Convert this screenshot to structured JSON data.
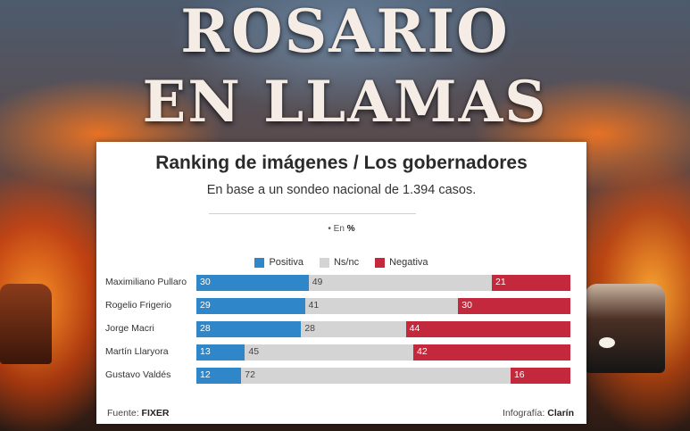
{
  "headline": {
    "line1": "ROSARIO",
    "line2": "EN LLAMAS"
  },
  "colors": {
    "positive": "#2f86c8",
    "neutral": "#d4d4d4",
    "negative": "#c4283c",
    "label_light": "#ffffff",
    "label_dark": "#444444"
  },
  "chart_data": {
    "type": "bar",
    "orientation": "horizontal",
    "stacked": true,
    "normalized": true,
    "title": "Ranking de imágenes / Los gobernadores",
    "subtitle": "En base a un sondeo nacional de 1.394 casos.",
    "unit_note_prefix": "• En",
    "unit_note_value": "%",
    "categories": [
      "Maximiliano Pullaro",
      "Rogelio Frigerio",
      "Jorge Macri",
      "Martín Llaryora",
      "Gustavo Valdés"
    ],
    "series": [
      {
        "name": "Positiva",
        "values": [
          30,
          29,
          28,
          13,
          12
        ]
      },
      {
        "name": "Ns/nc",
        "values": [
          49,
          41,
          28,
          45,
          72
        ]
      },
      {
        "name": "Negativa",
        "values": [
          21,
          30,
          44,
          42,
          16
        ]
      }
    ],
    "legend_position": "top-center",
    "grid": false
  },
  "footer": {
    "source_prefix": "Fuente:",
    "source_name": "FIXER",
    "credit_prefix": "Infografía:",
    "credit_name": "Clarín"
  }
}
